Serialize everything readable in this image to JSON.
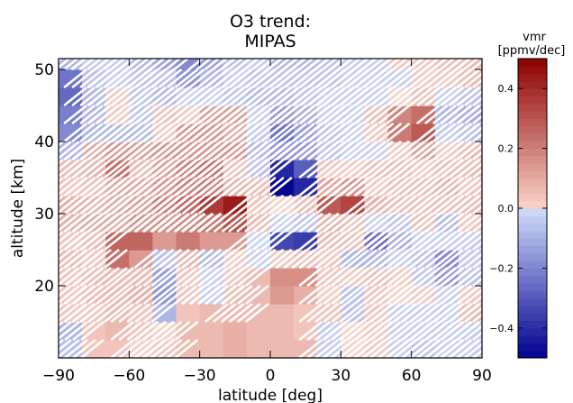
{
  "chart_data": {
    "type": "heatmap",
    "title_lines": [
      "O3 trend:",
      "MIPAS"
    ],
    "xlabel": "latitude [deg]",
    "ylabel": "altitude [km]",
    "xlim": [
      -90,
      90
    ],
    "ylim": [
      10,
      51.5
    ],
    "x_ticks": [
      -90,
      -60,
      -30,
      0,
      30,
      60,
      90
    ],
    "y_ticks": [
      20,
      30,
      40,
      50
    ],
    "lat_bin_edges": [
      -90,
      -80,
      -70,
      -60,
      -50,
      -40,
      -30,
      -20,
      -10,
      0,
      10,
      20,
      30,
      40,
      50,
      60,
      70,
      80,
      90
    ],
    "alt_bin_edges": [
      10,
      12.5,
      15,
      17.5,
      20,
      22.5,
      25,
      27.5,
      30,
      32.5,
      35,
      37.5,
      40,
      42.5,
      45,
      47.5,
      50,
      51.5
    ],
    "values": [
      [
        -0.06,
        0.04,
        0.03,
        0.01,
        0.03,
        0.05,
        0.06,
        0.08,
        0.07,
        0.07,
        0.07,
        -0.03,
        0.02,
        0.03,
        -0.04,
        -0.06,
        -0.04,
        -0.03
      ],
      [
        -0.08,
        0.04,
        0.05,
        0.03,
        0.02,
        0.06,
        0.07,
        0.09,
        0.07,
        0.05,
        0.03,
        -0.05,
        0.02,
        0.04,
        -0.03,
        -0.05,
        -0.05,
        -0.05
      ],
      [
        0.03,
        0.04,
        0.06,
        0.04,
        -0.1,
        0.04,
        0.06,
        0.05,
        0.06,
        0.06,
        0.04,
        0.03,
        -0.06,
        0.04,
        -0.03,
        -0.05,
        -0.05,
        0.05
      ],
      [
        0.03,
        0.05,
        0.06,
        0.08,
        -0.15,
        0.03,
        -0.05,
        0.05,
        0.06,
        0.14,
        0.1,
        0.02,
        -0.06,
        0.04,
        0.02,
        0.03,
        -0.05,
        0.04
      ],
      [
        0.03,
        0.06,
        0.06,
        0.06,
        -0.14,
        0.03,
        -0.05,
        0.03,
        0.06,
        0.16,
        0.15,
        0.03,
        0.04,
        0.05,
        0.03,
        -0.06,
        -0.15,
        -0.07
      ],
      [
        0.07,
        0.04,
        0.24,
        0.14,
        -0.06,
        0.09,
        -0.08,
        0.03,
        -0.03,
        0.03,
        0.05,
        0.04,
        -0.08,
        -0.08,
        -0.04,
        -0.06,
        -0.18,
        -0.05
      ],
      [
        0.03,
        0.06,
        0.26,
        0.26,
        0.13,
        0.22,
        0.14,
        0.14,
        -0.02,
        -0.34,
        -0.36,
        0.05,
        0.06,
        -0.26,
        -0.12,
        -0.05,
        -0.04,
        -0.05
      ],
      [
        0.1,
        0.11,
        0.12,
        0.15,
        0.16,
        0.18,
        0.21,
        0.32,
        0.05,
        -0.04,
        -0.07,
        0.08,
        0.06,
        -0.05,
        -0.06,
        0.05,
        -0.08,
        0.03
      ],
      [
        0.08,
        0.1,
        0.11,
        0.14,
        0.21,
        0.25,
        0.36,
        0.44,
        0.03,
        0.02,
        0.05,
        0.28,
        0.33,
        0.1,
        0.06,
        0.05,
        0.06,
        0.05
      ],
      [
        0.04,
        0.06,
        0.11,
        0.12,
        0.16,
        0.22,
        0.21,
        0.08,
        0.05,
        -0.48,
        -0.4,
        0.12,
        0.15,
        0.04,
        0.05,
        0.07,
        0.1,
        0.04
      ],
      [
        0.05,
        0.1,
        0.24,
        0.07,
        0.14,
        0.21,
        0.23,
        0.05,
        -0.06,
        -0.42,
        -0.28,
        0.03,
        0.04,
        0.06,
        0.05,
        0.04,
        0.06,
        0.05
      ],
      [
        -0.08,
        0.12,
        0.16,
        0.13,
        0.15,
        0.15,
        0.17,
        0.16,
        -0.1,
        -0.16,
        -0.15,
        -0.06,
        -0.05,
        -0.05,
        0.03,
        0.14,
        0.04,
        0.06
      ],
      [
        -0.18,
        -0.1,
        -0.1,
        -0.1,
        0.03,
        0.15,
        0.16,
        0.12,
        -0.04,
        -0.23,
        -0.14,
        -0.07,
        -0.05,
        0.03,
        0.22,
        0.28,
        -0.04,
        -0.06
      ],
      [
        -0.22,
        -0.1,
        0.04,
        -0.06,
        0.05,
        0.04,
        0.14,
        0.14,
        -0.04,
        -0.16,
        -0.11,
        -0.03,
        -0.04,
        0.05,
        0.2,
        0.24,
        -0.1,
        -0.12
      ],
      [
        -0.26,
        -0.1,
        0.03,
        -0.06,
        -0.08,
        -0.05,
        -0.03,
        -0.07,
        -0.09,
        -0.08,
        -0.06,
        -0.05,
        -0.04,
        -0.04,
        0.02,
        0.06,
        -0.04,
        -0.07
      ],
      [
        -0.24,
        -0.07,
        -0.05,
        -0.06,
        -0.06,
        -0.15,
        -0.08,
        -0.05,
        -0.06,
        -0.07,
        -0.07,
        -0.06,
        -0.04,
        -0.04,
        -0.04,
        0.04,
        0.04,
        0.06
      ],
      [
        -0.1,
        -0.05,
        -0.05,
        -0.1,
        -0.14,
        -0.18,
        -0.14,
        -0.07,
        -0.05,
        -0.1,
        -0.08,
        -0.07,
        -0.05,
        -0.05,
        0.03,
        0.04,
        0.06,
        0.07
      ]
    ],
    "hatched": [
      [
        1,
        0,
        0,
        1,
        1,
        0,
        0,
        0,
        0,
        0,
        0,
        1,
        1,
        1,
        1,
        1,
        1,
        1
      ],
      [
        1,
        0,
        0,
        1,
        1,
        0,
        0,
        0,
        0,
        0,
        0,
        1,
        1,
        1,
        1,
        1,
        1,
        1
      ],
      [
        1,
        1,
        0,
        1,
        0,
        0,
        0,
        1,
        0,
        0,
        0,
        1,
        0,
        1,
        1,
        1,
        1,
        1
      ],
      [
        1,
        1,
        0,
        1,
        0,
        1,
        1,
        1,
        0,
        0,
        0,
        1,
        0,
        1,
        1,
        1,
        1,
        1
      ],
      [
        1,
        1,
        0,
        1,
        0,
        1,
        1,
        1,
        0,
        0,
        0,
        1,
        1,
        1,
        1,
        1,
        1,
        1
      ],
      [
        1,
        1,
        0,
        0,
        1,
        1,
        1,
        1,
        1,
        1,
        1,
        1,
        0,
        1,
        1,
        1,
        0,
        1
      ],
      [
        1,
        1,
        0,
        0,
        0,
        0,
        0,
        0,
        1,
        0,
        0,
        1,
        1,
        1,
        1,
        1,
        1,
        1
      ],
      [
        1,
        1,
        1,
        1,
        1,
        1,
        1,
        0,
        1,
        1,
        1,
        1,
        1,
        1,
        1,
        1,
        1,
        1
      ],
      [
        1,
        1,
        1,
        1,
        1,
        1,
        0,
        0,
        1,
        1,
        1,
        0,
        0,
        1,
        1,
        1,
        1,
        1
      ],
      [
        1,
        1,
        1,
        1,
        1,
        1,
        1,
        1,
        1,
        0,
        0,
        1,
        1,
        1,
        1,
        1,
        1,
        1
      ],
      [
        1,
        1,
        0,
        1,
        1,
        1,
        1,
        1,
        1,
        0,
        0,
        1,
        1,
        1,
        1,
        1,
        1,
        1
      ],
      [
        1,
        1,
        1,
        1,
        1,
        1,
        1,
        1,
        1,
        1,
        1,
        1,
        1,
        1,
        1,
        1,
        1,
        1
      ],
      [
        0,
        1,
        1,
        1,
        1,
        1,
        1,
        1,
        1,
        0,
        1,
        1,
        1,
        1,
        0,
        0,
        1,
        1
      ],
      [
        0,
        1,
        1,
        1,
        1,
        1,
        1,
        1,
        1,
        1,
        1,
        1,
        1,
        1,
        0,
        0,
        1,
        1
      ],
      [
        0,
        1,
        1,
        1,
        1,
        1,
        1,
        1,
        1,
        1,
        1,
        1,
        1,
        1,
        1,
        1,
        1,
        1
      ],
      [
        0,
        1,
        1,
        1,
        1,
        0,
        1,
        1,
        1,
        1,
        1,
        1,
        1,
        1,
        1,
        1,
        1,
        1
      ],
      [
        1,
        1,
        1,
        1,
        1,
        0,
        1,
        1,
        1,
        1,
        1,
        1,
        1,
        1,
        1,
        1,
        1,
        1
      ]
    ],
    "colorbar": {
      "title_lines": [
        "vmr",
        "[ppmv/dec]"
      ],
      "range": [
        -0.5,
        0.5
      ],
      "levels": 40,
      "ticks": [
        0.4,
        0.2,
        0.0,
        -0.2,
        -0.4
      ],
      "tick_labels": [
        "0.4",
        "0.2",
        "0.0",
        "−0.2",
        "−0.4"
      ],
      "colors": {
        "low": "#00008f",
        "mid_low": "#d2dcfa",
        "mid_high": "#fbd4ca",
        "high": "#8c0000"
      }
    },
    "grid": false,
    "hatch_color": "#ffffff"
  }
}
